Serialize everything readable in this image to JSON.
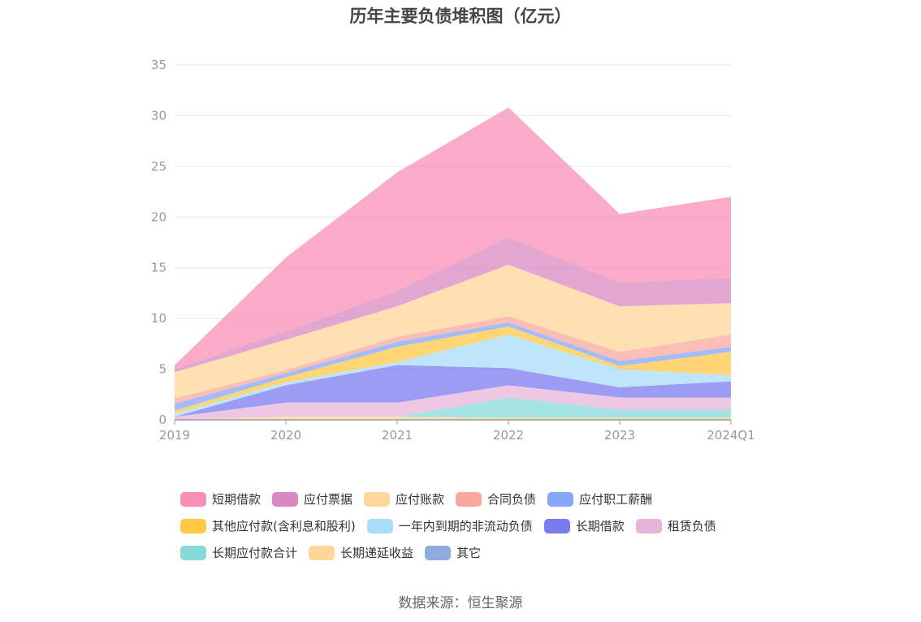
{
  "chart_data": {
    "type": "area",
    "stacked": true,
    "title": "历年主要负债堆积图（亿元）",
    "categories": [
      "2019",
      "2020",
      "2021",
      "2022",
      "2023",
      "2024Q1"
    ],
    "ylim": [
      0,
      35
    ],
    "yticks": [
      0,
      5,
      10,
      15,
      20,
      25,
      30,
      35
    ],
    "grid": true,
    "legend_position": "bottom",
    "series": [
      {
        "name": "其它",
        "color": "#8FAADC",
        "values": [
          0.0,
          0.0,
          0.0,
          0.0,
          0.0,
          0.0
        ]
      },
      {
        "name": "长期递延收益",
        "color": "#FFD699",
        "values": [
          0.0,
          0.3,
          0.3,
          0.2,
          0.2,
          0.2
        ]
      },
      {
        "name": "长期应付款合计",
        "color": "#88D9D9",
        "values": [
          0.0,
          0.0,
          0.0,
          2.0,
          0.8,
          0.8
        ]
      },
      {
        "name": "租赁负债",
        "color": "#E8B4D9",
        "values": [
          0.3,
          1.4,
          1.4,
          1.2,
          1.2,
          1.2
        ]
      },
      {
        "name": "长期借款",
        "color": "#7B7BF0",
        "values": [
          0.0,
          1.7,
          3.7,
          1.7,
          1.0,
          1.6
        ]
      },
      {
        "name": "一年内到期的非流动负债",
        "color": "#A8DCF8",
        "values": [
          0.3,
          0.3,
          0.3,
          3.3,
          1.8,
          0.6
        ]
      },
      {
        "name": "其他应付款(含利息和股利)",
        "color": "#FFC845",
        "values": [
          0.3,
          0.5,
          1.5,
          0.8,
          0.3,
          2.3
        ]
      },
      {
        "name": "应付职工薪酬",
        "color": "#88A6F8",
        "values": [
          0.7,
          0.4,
          0.5,
          0.4,
          0.5,
          0.5
        ]
      },
      {
        "name": "合同负债",
        "color": "#F9A89D",
        "values": [
          0.5,
          0.3,
          0.5,
          0.6,
          0.9,
          1.2
        ]
      },
      {
        "name": "应付账款",
        "color": "#FFD699",
        "values": [
          2.6,
          3.0,
          3.0,
          5.1,
          4.5,
          3.1
        ]
      },
      {
        "name": "应付票据",
        "color": "#D988C2",
        "values": [
          0.3,
          0.8,
          1.5,
          2.7,
          2.3,
          2.5
        ]
      },
      {
        "name": "短期借款",
        "color": "#F88FB6",
        "values": [
          0.4,
          7.3,
          11.7,
          12.8,
          6.8,
          8.0
        ]
      }
    ],
    "legend_rows": [
      [
        {
          "name": "短期借款",
          "color": "#F88FB6"
        },
        {
          "name": "应付票据",
          "color": "#D988C2"
        },
        {
          "name": "应付账款",
          "color": "#FFD699"
        },
        {
          "name": "合同负债",
          "color": "#F9A89D"
        },
        {
          "name": "应付职工薪酬",
          "color": "#88A6F8"
        }
      ],
      [
        {
          "name": "其他应付款(含利息和股利)",
          "color": "#FFC845"
        },
        {
          "name": "一年内到期的非流动负债",
          "color": "#A8DCF8"
        },
        {
          "name": "长期借款",
          "color": "#7B7BF0"
        },
        {
          "name": "租赁负债",
          "color": "#E8B4D9"
        }
      ],
      [
        {
          "name": "长期应付款合计",
          "color": "#88D9D9"
        },
        {
          "name": "长期递延收益",
          "color": "#FFD699"
        },
        {
          "name": "其它",
          "color": "#8FAADC"
        }
      ]
    ]
  },
  "source_note": "数据来源：恒生聚源"
}
